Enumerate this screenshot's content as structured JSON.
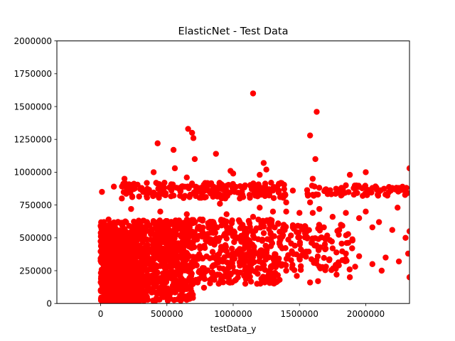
{
  "chart_data": {
    "type": "scatter",
    "title": "ElasticNet - Test Data",
    "xlabel": "testData_y",
    "ylabel": "",
    "xlim": [
      -330000,
      2330000
    ],
    "ylim": [
      0,
      2000000
    ],
    "x_ticks": [
      0,
      500000,
      1000000,
      1500000,
      2000000
    ],
    "x_tick_labels": [
      "0",
      "500000",
      "1000000",
      "1500000",
      "2000000"
    ],
    "y_ticks": [
      0,
      250000,
      500000,
      750000,
      1000000,
      1250000,
      1500000,
      1750000,
      2000000
    ],
    "y_tick_labels": [
      "0",
      "250000",
      "500000",
      "750000",
      "1000000",
      "1250000",
      "1500000",
      "1750000",
      "2000000"
    ],
    "grid": false,
    "marker_color": "#ff0000",
    "marker": "circle",
    "series": [
      {
        "points": [
          [
            1150000,
            1600000
          ],
          [
            1630000,
            1460000
          ],
          [
            660000,
            1330000
          ],
          [
            690000,
            1300000
          ],
          [
            1580000,
            1280000
          ],
          [
            700000,
            1260000
          ],
          [
            430000,
            1220000
          ],
          [
            550000,
            1170000
          ],
          [
            870000,
            1140000
          ],
          [
            710000,
            1100000
          ],
          [
            1620000,
            1100000
          ],
          [
            1230000,
            1070000
          ],
          [
            2330000,
            1030000
          ],
          [
            560000,
            1030000
          ],
          [
            1250000,
            1020000
          ],
          [
            980000,
            1010000
          ],
          [
            400000,
            1000000
          ],
          [
            1880000,
            980000
          ],
          [
            2000000,
            1000000
          ],
          [
            1000000,
            990000
          ],
          [
            1200000,
            980000
          ],
          [
            650000,
            960000
          ],
          [
            180000,
            950000
          ],
          [
            1600000,
            950000
          ],
          [
            1850000,
            900000
          ],
          [
            900000,
            880000
          ],
          [
            2200000,
            880000
          ],
          [
            300000,
            870000
          ],
          [
            2050000,
            880000
          ],
          [
            1300000,
            860000
          ],
          [
            1450000,
            860000
          ],
          [
            2100000,
            850000
          ],
          [
            10000,
            850000
          ],
          [
            100000,
            890000
          ],
          [
            1700000,
            870000
          ],
          [
            800000,
            880000
          ],
          [
            2250000,
            880000
          ],
          [
            230000,
            720000
          ],
          [
            2240000,
            730000
          ],
          [
            160000,
            800000
          ],
          [
            1050000,
            800000
          ],
          [
            1400000,
            770000
          ],
          [
            1580000,
            770000
          ],
          [
            900000,
            760000
          ],
          [
            1400000,
            700000
          ],
          [
            2000000,
            700000
          ],
          [
            1850000,
            690000
          ],
          [
            1950000,
            650000
          ],
          [
            2100000,
            620000
          ],
          [
            2050000,
            580000
          ],
          [
            2200000,
            560000
          ],
          [
            2330000,
            550000
          ],
          [
            2300000,
            500000
          ],
          [
            1750000,
            660000
          ],
          [
            1650000,
            720000
          ],
          [
            1600000,
            690000
          ],
          [
            1500000,
            690000
          ],
          [
            1300000,
            700000
          ],
          [
            1200000,
            730000
          ],
          [
            1150000,
            660000
          ],
          [
            1050000,
            620000
          ],
          [
            950000,
            680000
          ],
          [
            850000,
            620000
          ],
          [
            750000,
            640000
          ],
          [
            650000,
            680000
          ],
          [
            550000,
            600000
          ],
          [
            450000,
            700000
          ],
          [
            350000,
            620000
          ],
          [
            250000,
            590000
          ],
          [
            150000,
            550000
          ],
          [
            60000,
            520000
          ],
          [
            20000,
            480000
          ],
          [
            1450000,
            580000
          ],
          [
            1550000,
            540000
          ],
          [
            1700000,
            500000
          ],
          [
            1800000,
            560000
          ],
          [
            1900000,
            480000
          ],
          [
            1750000,
            420000
          ],
          [
            1850000,
            380000
          ],
          [
            1950000,
            360000
          ],
          [
            2150000,
            350000
          ],
          [
            2250000,
            320000
          ],
          [
            2320000,
            380000
          ],
          [
            2330000,
            200000
          ],
          [
            2120000,
            250000
          ],
          [
            2050000,
            300000
          ],
          [
            1920000,
            280000
          ],
          [
            1880000,
            200000
          ],
          [
            1780000,
            220000
          ],
          [
            1700000,
            280000
          ],
          [
            1640000,
            170000
          ],
          [
            1580000,
            160000
          ],
          [
            1480000,
            210000
          ],
          [
            1400000,
            250000
          ],
          [
            1350000,
            180000
          ],
          [
            1300000,
            230000
          ],
          [
            1250000,
            200000
          ],
          [
            1180000,
            150000
          ],
          [
            1100000,
            260000
          ],
          [
            1020000,
            180000
          ],
          [
            960000,
            220000
          ],
          [
            900000,
            160000
          ],
          [
            850000,
            210000
          ],
          [
            780000,
            120000
          ],
          [
            720000,
            180000
          ],
          [
            650000,
            110000
          ],
          [
            600000,
            150000
          ],
          [
            540000,
            90000
          ],
          [
            480000,
            130000
          ],
          [
            420000,
            80000
          ],
          [
            380000,
            110000
          ],
          [
            320000,
            70000
          ],
          [
            280000,
            100000
          ],
          [
            230000,
            60000
          ],
          [
            190000,
            90000
          ],
          [
            150000,
            50000
          ],
          [
            120000,
            40000
          ],
          [
            90000,
            20000
          ],
          [
            70000,
            60000
          ],
          [
            50000,
            30000
          ],
          [
            40000,
            100000
          ],
          [
            30000,
            180000
          ],
          [
            20000,
            250000
          ],
          [
            10000,
            320000
          ],
          [
            5000,
            400000
          ],
          [
            15000,
            560000
          ],
          [
            25000,
            620000
          ],
          [
            60000,
            640000
          ]
        ]
      }
    ]
  }
}
